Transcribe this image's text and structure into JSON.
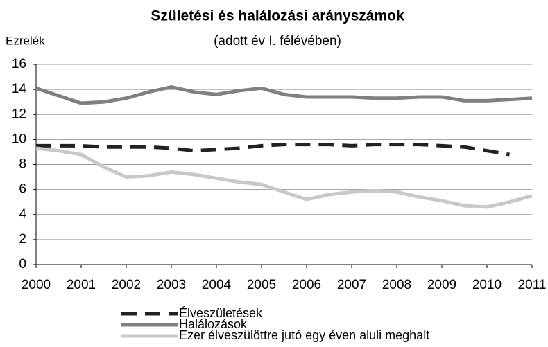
{
  "chart_data": {
    "type": "line",
    "title": "Születési és halálozási arányszámok",
    "subtitle": "(adott év I. félévében)",
    "y_label": "Ezrelék",
    "x": [
      2000,
      2000.5,
      2001,
      2001.5,
      2002,
      2002.5,
      2003,
      2003.5,
      2004,
      2004.5,
      2005,
      2005.5,
      2006,
      2006.5,
      2007,
      2007.5,
      2008,
      2008.5,
      2009,
      2009.5,
      2010,
      2010.5,
      2011
    ],
    "series": [
      {
        "name": "Élveszületések",
        "color": "#222222",
        "dash": true,
        "values": [
          9.5,
          9.5,
          9.5,
          9.4,
          9.4,
          9.4,
          9.3,
          9.1,
          9.2,
          9.3,
          9.5,
          9.6,
          9.6,
          9.6,
          9.5,
          9.6,
          9.6,
          9.6,
          9.5,
          9.4,
          9.1,
          8.8,
          null
        ]
      },
      {
        "name": "Halálozások",
        "color": "#808080",
        "values": [
          14.1,
          13.5,
          12.9,
          13.0,
          13.3,
          13.8,
          14.2,
          13.8,
          13.6,
          13.9,
          14.1,
          13.6,
          13.4,
          13.4,
          13.4,
          13.3,
          13.3,
          13.4,
          13.4,
          13.1,
          13.1,
          13.2,
          13.3
        ]
      },
      {
        "name": "Ezer élveszülöttre jutó egy éven aluli meghalt",
        "color": "#c8c8c8",
        "values": [
          9.3,
          9.1,
          8.8,
          7.8,
          7.0,
          7.1,
          7.4,
          7.2,
          6.9,
          6.6,
          6.4,
          5.8,
          5.2,
          5.6,
          5.8,
          5.9,
          5.8,
          5.4,
          5.1,
          4.7,
          4.6,
          5.0,
          5.5
        ]
      }
    ],
    "xlim": [
      2000,
      2011
    ],
    "xticks": [
      2000,
      2001,
      2002,
      2003,
      2004,
      2005,
      2006,
      2007,
      2008,
      2009,
      2010,
      2011
    ],
    "ylim": [
      0,
      16
    ],
    "yticks": [
      0,
      2,
      4,
      6,
      8,
      10,
      12,
      14,
      16
    ],
    "grid": true
  }
}
